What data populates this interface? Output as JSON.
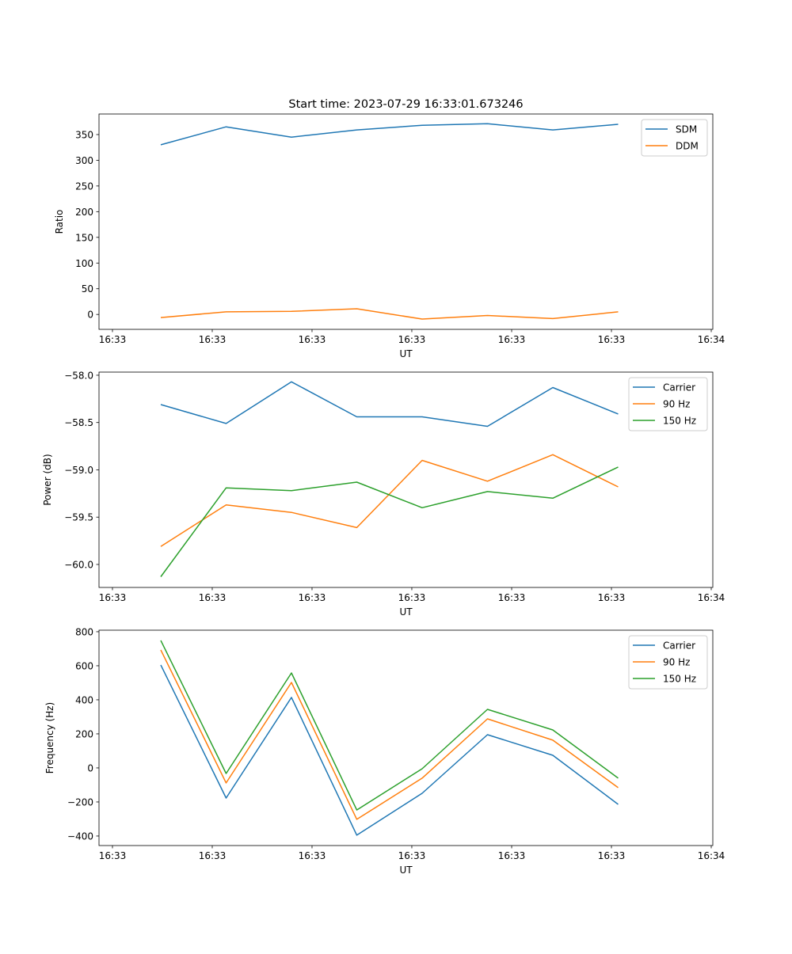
{
  "chart_data": [
    {
      "type": "line",
      "title": "Start time: 2023-07-29 16:33:01.673246",
      "xlabel": "UT",
      "ylabel": "Ratio",
      "x": [
        0,
        1,
        2,
        3,
        4,
        5,
        6,
        7
      ],
      "xlim": [
        -0.945,
        8.448
      ],
      "x_ticks": [
        -0.739,
        0.788,
        2.315,
        3.842,
        5.37,
        6.897,
        8.424
      ],
      "x_tick_labels": [
        "16:33",
        "16:33",
        "16:33",
        "16:33",
        "16:33",
        "16:33",
        "16:34"
      ],
      "ylim": [
        -29,
        390
      ],
      "y_ticks": [
        0,
        50,
        100,
        150,
        200,
        250,
        300,
        350
      ],
      "y_tick_labels": [
        "0",
        "50",
        "100",
        "150",
        "200",
        "250",
        "300",
        "350"
      ],
      "legend": "top-right",
      "grid": false,
      "series": [
        {
          "name": "SDM",
          "color": "#1f77b4",
          "values": [
            330,
            365,
            345,
            359,
            368,
            371,
            359,
            370
          ]
        },
        {
          "name": "DDM",
          "color": "#ff7f0e",
          "values": [
            -6,
            5,
            6,
            11,
            -9,
            -2,
            -8,
            5
          ]
        }
      ]
    },
    {
      "type": "line",
      "title": "",
      "xlabel": "UT",
      "ylabel": "Power (dB)",
      "x": [
        0,
        1,
        2,
        3,
        4,
        5,
        6,
        7
      ],
      "xlim": [
        -0.945,
        8.448
      ],
      "x_ticks": [
        -0.739,
        0.788,
        2.315,
        3.842,
        5.37,
        6.897,
        8.424
      ],
      "x_tick_labels": [
        "16:33",
        "16:33",
        "16:33",
        "16:33",
        "16:33",
        "16:33",
        "16:34"
      ],
      "ylim": [
        -60.243,
        -57.967
      ],
      "y_ticks": [
        -60.0,
        -59.5,
        -59.0,
        -58.5,
        -58.0
      ],
      "y_tick_labels": [
        "−60.0",
        "−59.5",
        "−59.0",
        "−58.5",
        "−58.0"
      ],
      "legend": "top-right",
      "grid": false,
      "series": [
        {
          "name": "Carrier",
          "color": "#1f77b4",
          "values": [
            -58.31,
            -58.51,
            -58.07,
            -58.44,
            -58.44,
            -58.54,
            -58.13,
            -58.41
          ]
        },
        {
          "name": "90 Hz",
          "color": "#ff7f0e",
          "values": [
            -59.81,
            -59.37,
            -59.45,
            -59.61,
            -58.9,
            -59.12,
            -58.84,
            -59.18
          ]
        },
        {
          "name": "150 Hz",
          "color": "#2ca02c",
          "values": [
            -60.13,
            -59.19,
            -59.22,
            -59.13,
            -59.4,
            -59.23,
            -59.3,
            -58.97
          ]
        }
      ]
    },
    {
      "type": "line",
      "title": "",
      "xlabel": "UT",
      "ylabel": "Frequency (Hz)",
      "x": [
        0,
        1,
        2,
        3,
        4,
        5,
        6,
        7
      ],
      "xlim": [
        -0.945,
        8.448
      ],
      "x_ticks": [
        -0.739,
        0.788,
        2.315,
        3.842,
        5.37,
        6.897,
        8.424
      ],
      "x_tick_labels": [
        "16:33",
        "16:33",
        "16:33",
        "16:33",
        "16:33",
        "16:33",
        "16:34"
      ],
      "ylim": [
        -456,
        809
      ],
      "y_ticks": [
        -400,
        -200,
        0,
        200,
        400,
        600,
        800
      ],
      "y_tick_labels": [
        "−400",
        "−200",
        "0",
        "200",
        "400",
        "600",
        "800"
      ],
      "legend": "top-right",
      "grid": false,
      "series": [
        {
          "name": "Carrier",
          "color": "#1f77b4",
          "values": [
            605,
            -177,
            414,
            -395,
            -149,
            195,
            74,
            -214
          ]
        },
        {
          "name": "90 Hz",
          "color": "#ff7f0e",
          "values": [
            693,
            -88,
            502,
            -302,
            -60,
            288,
            163,
            -116
          ]
        },
        {
          "name": "150 Hz",
          "color": "#2ca02c",
          "values": [
            749,
            -33,
            558,
            -247,
            -5,
            344,
            223,
            -60
          ]
        }
      ]
    }
  ]
}
